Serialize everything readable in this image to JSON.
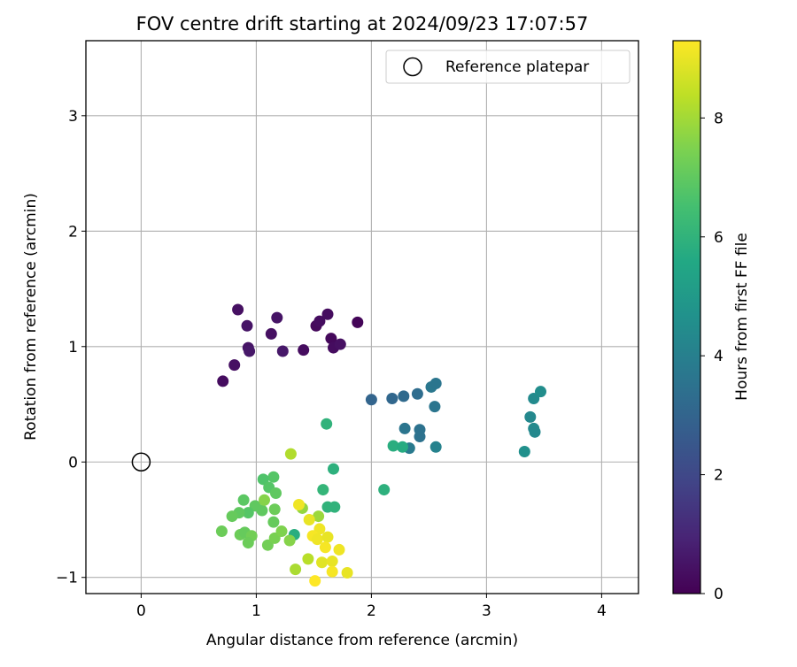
{
  "chart_data": {
    "type": "scatter",
    "title": "FOV centre drift starting at 2024/09/23 17:07:57",
    "xlabel": "Angular distance from reference (arcmin)",
    "ylabel": "Rotation from reference (arcmin)",
    "xlim": [
      -0.48,
      4.32
    ],
    "ylim": [
      -1.14,
      3.65
    ],
    "x_ticks": [
      0,
      1,
      2,
      3,
      4
    ],
    "y_ticks": [
      -1,
      0,
      1,
      2,
      3
    ],
    "grid": true,
    "legend": {
      "position": "top-right",
      "entries": [
        "Reference platepar"
      ]
    },
    "reference_point": {
      "label": "Reference platepar",
      "x": 0,
      "y": 0
    },
    "colorbar": {
      "label": "Hours from first FF file",
      "colormap": "viridis",
      "range": [
        0,
        9.3
      ],
      "ticks": [
        0,
        2,
        4,
        6,
        8
      ]
    },
    "points": [
      {
        "x": 0.71,
        "y": 0.7,
        "c": 0.3
      },
      {
        "x": 0.81,
        "y": 0.84,
        "c": 0.4
      },
      {
        "x": 0.84,
        "y": 1.32,
        "c": 0.4
      },
      {
        "x": 0.92,
        "y": 1.18,
        "c": 0.5
      },
      {
        "x": 0.93,
        "y": 0.99,
        "c": 0.5
      },
      {
        "x": 0.94,
        "y": 0.96,
        "c": 0.6
      },
      {
        "x": 1.13,
        "y": 1.11,
        "c": 0.4
      },
      {
        "x": 1.18,
        "y": 1.25,
        "c": 0.5
      },
      {
        "x": 1.23,
        "y": 0.96,
        "c": 0.6
      },
      {
        "x": 1.41,
        "y": 0.97,
        "c": 0.3
      },
      {
        "x": 1.52,
        "y": 1.18,
        "c": 0.2
      },
      {
        "x": 1.55,
        "y": 1.22,
        "c": 0.3
      },
      {
        "x": 1.62,
        "y": 1.28,
        "c": 0.3
      },
      {
        "x": 1.65,
        "y": 1.07,
        "c": 0.2
      },
      {
        "x": 1.67,
        "y": 0.99,
        "c": 0.3
      },
      {
        "x": 1.73,
        "y": 1.02,
        "c": 0.4
      },
      {
        "x": 1.88,
        "y": 1.21,
        "c": 0.1
      },
      {
        "x": 2.0,
        "y": 0.54,
        "c": 3.0
      },
      {
        "x": 2.18,
        "y": 0.55,
        "c": 3.1
      },
      {
        "x": 2.28,
        "y": 0.57,
        "c": 3.2
      },
      {
        "x": 2.4,
        "y": 0.59,
        "c": 3.3
      },
      {
        "x": 2.29,
        "y": 0.29,
        "c": 3.6
      },
      {
        "x": 2.33,
        "y": 0.12,
        "c": 3.8
      },
      {
        "x": 2.42,
        "y": 0.28,
        "c": 3.5
      },
      {
        "x": 2.42,
        "y": 0.22,
        "c": 3.5
      },
      {
        "x": 2.52,
        "y": 0.65,
        "c": 3.7
      },
      {
        "x": 2.56,
        "y": 0.68,
        "c": 3.6
      },
      {
        "x": 2.55,
        "y": 0.48,
        "c": 3.6
      },
      {
        "x": 2.56,
        "y": 0.13,
        "c": 4.1
      },
      {
        "x": 3.33,
        "y": 0.09,
        "c": 4.6
      },
      {
        "x": 3.38,
        "y": 0.39,
        "c": 4.3
      },
      {
        "x": 3.41,
        "y": 0.55,
        "c": 4.4
      },
      {
        "x": 3.41,
        "y": 0.29,
        "c": 4.4
      },
      {
        "x": 3.42,
        "y": 0.26,
        "c": 4.3
      },
      {
        "x": 3.47,
        "y": 0.61,
        "c": 4.5
      },
      {
        "x": 2.19,
        "y": 0.14,
        "c": 5.8
      },
      {
        "x": 2.27,
        "y": 0.13,
        "c": 5.7
      },
      {
        "x": 2.11,
        "y": -0.24,
        "c": 5.9
      },
      {
        "x": 1.61,
        "y": 0.33,
        "c": 6.0
      },
      {
        "x": 1.67,
        "y": -0.06,
        "c": 5.9
      },
      {
        "x": 1.58,
        "y": -0.24,
        "c": 6.1
      },
      {
        "x": 1.62,
        "y": -0.39,
        "c": 6.0
      },
      {
        "x": 1.68,
        "y": -0.39,
        "c": 6.0
      },
      {
        "x": 1.33,
        "y": -0.63,
        "c": 5.8
      },
      {
        "x": 1.15,
        "y": -0.13,
        "c": 6.8
      },
      {
        "x": 1.06,
        "y": -0.15,
        "c": 6.7
      },
      {
        "x": 1.11,
        "y": -0.22,
        "c": 6.8
      },
      {
        "x": 1.17,
        "y": -0.27,
        "c": 7.0
      },
      {
        "x": 0.89,
        "y": -0.33,
        "c": 6.9
      },
      {
        "x": 0.99,
        "y": -0.38,
        "c": 7.0
      },
      {
        "x": 1.05,
        "y": -0.42,
        "c": 7.0
      },
      {
        "x": 0.93,
        "y": -0.44,
        "c": 6.8
      },
      {
        "x": 0.85,
        "y": -0.44,
        "c": 7.0
      },
      {
        "x": 0.79,
        "y": -0.47,
        "c": 7.1
      },
      {
        "x": 1.16,
        "y": -0.41,
        "c": 7.2
      },
      {
        "x": 1.15,
        "y": -0.52,
        "c": 7.1
      },
      {
        "x": 0.7,
        "y": -0.6,
        "c": 7.2
      },
      {
        "x": 0.86,
        "y": -0.63,
        "c": 7.2
      },
      {
        "x": 0.9,
        "y": -0.61,
        "c": 7.1
      },
      {
        "x": 0.96,
        "y": -0.64,
        "c": 7.3
      },
      {
        "x": 0.93,
        "y": -0.7,
        "c": 7.2
      },
      {
        "x": 1.1,
        "y": -0.72,
        "c": 7.3
      },
      {
        "x": 1.16,
        "y": -0.66,
        "c": 7.4
      },
      {
        "x": 1.22,
        "y": -0.6,
        "c": 7.5
      },
      {
        "x": 1.29,
        "y": -0.68,
        "c": 7.6
      },
      {
        "x": 1.07,
        "y": -0.33,
        "c": 7.6
      },
      {
        "x": 1.4,
        "y": -0.4,
        "c": 7.8
      },
      {
        "x": 1.3,
        "y": 0.07,
        "c": 8.2
      },
      {
        "x": 1.54,
        "y": -0.47,
        "c": 7.9
      },
      {
        "x": 1.34,
        "y": -0.93,
        "c": 8.1
      },
      {
        "x": 1.45,
        "y": -0.84,
        "c": 8.3
      },
      {
        "x": 1.37,
        "y": -0.37,
        "c": 9.1
      },
      {
        "x": 1.46,
        "y": -0.5,
        "c": 9.0
      },
      {
        "x": 1.55,
        "y": -0.58,
        "c": 9.1
      },
      {
        "x": 1.49,
        "y": -0.64,
        "c": 9.2
      },
      {
        "x": 1.53,
        "y": -0.67,
        "c": 9.1
      },
      {
        "x": 1.62,
        "y": -0.65,
        "c": 9.0
      },
      {
        "x": 1.6,
        "y": -0.74,
        "c": 9.2
      },
      {
        "x": 1.72,
        "y": -0.76,
        "c": 9.1
      },
      {
        "x": 1.57,
        "y": -0.87,
        "c": 8.9
      },
      {
        "x": 1.66,
        "y": -0.86,
        "c": 9.0
      },
      {
        "x": 1.66,
        "y": -0.95,
        "c": 9.2
      },
      {
        "x": 1.79,
        "y": -0.96,
        "c": 9.0
      },
      {
        "x": 1.51,
        "y": -1.03,
        "c": 9.3
      }
    ]
  }
}
